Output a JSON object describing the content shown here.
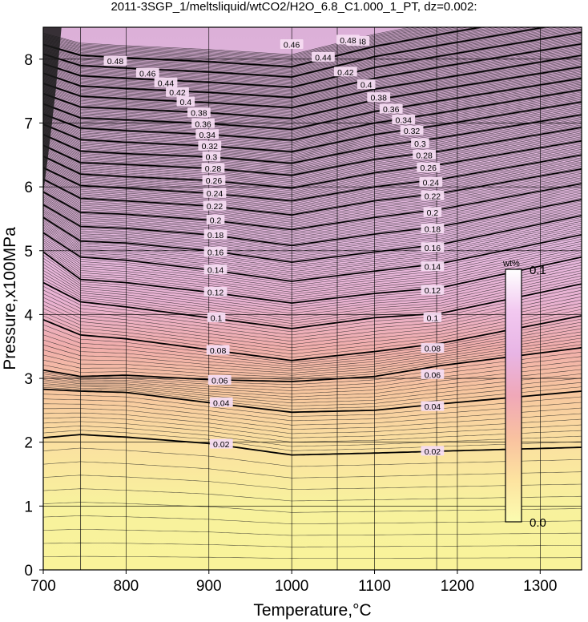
{
  "chart_data": {
    "type": "contour",
    "title": "2011-3SGP_1/meltsliquid/wtCO2/H2O_6.8_C1.000_1_PT, dz=0.002:",
    "xlabel": "Temperature,°C",
    "ylabel": "Pressure,x100MPa",
    "xlim": [
      700,
      1350
    ],
    "ylim": [
      0,
      8.5
    ],
    "xticks": [
      "700",
      "800",
      "900",
      "1000",
      "1100",
      "1200",
      "1300"
    ],
    "yticks": [
      "0",
      "1",
      "2",
      "3",
      "4",
      "5",
      "6",
      "7",
      "8"
    ],
    "contour_interval": 0.002,
    "bold_contour_interval": 0.02,
    "bold_contours": [
      {
        "level": 0.02,
        "x": [
          700,
          745,
          800,
          900,
          1000,
          1100,
          1180,
          1350
        ],
        "y": [
          2.07,
          2.12,
          2.08,
          1.98,
          1.8,
          1.83,
          1.86,
          1.92
        ]
      },
      {
        "level": 0.04,
        "x": [
          700,
          745,
          800,
          900,
          1000,
          1100,
          1180,
          1350
        ],
        "y": [
          2.83,
          2.8,
          2.78,
          2.62,
          2.47,
          2.5,
          2.6,
          2.8
        ]
      },
      {
        "level": 0.06,
        "x": [
          700,
          745,
          800,
          900,
          1000,
          1100,
          1180,
          1350
        ],
        "y": [
          3.13,
          3.03,
          3.05,
          2.98,
          2.95,
          3.03,
          3.2,
          3.48
        ]
      },
      {
        "level": 0.08,
        "x": [
          700,
          745,
          800,
          900,
          1000,
          1100,
          1180,
          1350
        ],
        "y": [
          3.92,
          3.68,
          3.62,
          3.45,
          3.28,
          3.42,
          3.55,
          3.98
        ]
      },
      {
        "level": 0.1,
        "x": [
          700,
          745,
          800,
          900,
          1000,
          1100,
          1180,
          1350
        ],
        "y": [
          4.5,
          4.2,
          4.12,
          3.95,
          3.78,
          3.95,
          4.02,
          4.48
        ]
      },
      {
        "level": 0.12,
        "x": [
          700,
          745,
          800,
          900,
          1000,
          1100,
          1180,
          1350
        ],
        "y": [
          4.98,
          4.55,
          4.5,
          4.35,
          4.18,
          4.33,
          4.42,
          4.9
        ]
      },
      {
        "level": 0.14,
        "x": [
          700,
          745,
          800,
          900,
          1000,
          1100,
          1180,
          1350
        ],
        "y": [
          5.28,
          4.9,
          4.85,
          4.7,
          4.52,
          4.68,
          4.8,
          5.25
        ]
      },
      {
        "level": 0.16,
        "x": [
          700,
          745,
          800,
          900,
          1000,
          1100,
          1180,
          1350
        ],
        "y": [
          5.52,
          5.15,
          5.12,
          5.0,
          4.82,
          4.98,
          5.1,
          5.55
        ]
      },
      {
        "level": 0.18,
        "x": [
          700,
          745,
          800,
          900,
          1000,
          1100,
          1180,
          1350
        ],
        "y": [
          5.72,
          5.38,
          5.35,
          5.25,
          5.08,
          5.26,
          5.38,
          5.8
        ]
      },
      {
        "level": 0.2,
        "x": [
          700,
          745,
          800,
          900,
          1000,
          1100,
          1180,
          1350
        ],
        "y": [
          5.92,
          5.6,
          5.57,
          5.48,
          5.33,
          5.52,
          5.65,
          6.05
        ]
      },
      {
        "level": 0.22,
        "x": [
          700,
          745,
          800,
          900,
          1000,
          1100,
          1180,
          1350
        ],
        "y": [
          6.12,
          5.82,
          5.78,
          5.7,
          5.56,
          5.78,
          5.9,
          6.28
        ]
      },
      {
        "level": 0.24,
        "x": [
          700,
          745,
          800,
          900,
          1000,
          1100,
          1180,
          1350
        ],
        "y": [
          6.3,
          6.02,
          5.98,
          5.9,
          5.78,
          6.0,
          6.12,
          6.5
        ]
      },
      {
        "level": 0.26,
        "x": [
          700,
          745,
          800,
          900,
          1000,
          1100,
          1180,
          1350
        ],
        "y": [
          6.48,
          6.2,
          6.16,
          6.1,
          5.98,
          6.22,
          6.35,
          6.72
        ]
      },
      {
        "level": 0.28,
        "x": [
          700,
          745,
          800,
          900,
          1000,
          1100,
          1180,
          1350
        ],
        "y": [
          6.65,
          6.38,
          6.35,
          6.29,
          6.18,
          6.43,
          6.56,
          6.93
        ]
      },
      {
        "level": 0.3,
        "x": [
          700,
          745,
          800,
          900,
          1000,
          1100,
          1180,
          1350
        ],
        "y": [
          6.82,
          6.56,
          6.52,
          6.47,
          6.37,
          6.63,
          6.77,
          7.13
        ]
      },
      {
        "level": 0.32,
        "x": [
          700,
          745,
          800,
          900,
          1000,
          1100,
          1180,
          1350
        ],
        "y": [
          6.98,
          6.74,
          6.7,
          6.64,
          6.55,
          6.82,
          6.97,
          7.33
        ]
      },
      {
        "level": 0.34,
        "x": [
          700,
          745,
          800,
          900,
          1000,
          1100,
          1180,
          1350
        ],
        "y": [
          7.14,
          6.92,
          6.88,
          6.82,
          6.73,
          7.0,
          7.16,
          7.52
        ]
      },
      {
        "level": 0.36,
        "x": [
          700,
          745,
          800,
          900,
          1000,
          1100,
          1180,
          1350
        ],
        "y": [
          7.3,
          7.08,
          7.05,
          6.99,
          6.9,
          7.18,
          7.35,
          7.7
        ]
      },
      {
        "level": 0.38,
        "x": [
          700,
          745,
          800,
          900,
          1000,
          1100,
          1180,
          1350
        ],
        "y": [
          7.46,
          7.25,
          7.22,
          7.16,
          7.07,
          7.36,
          7.53,
          7.88
        ]
      },
      {
        "level": 0.4,
        "x": [
          700,
          745,
          800,
          900,
          1000,
          1100,
          1180,
          1350
        ],
        "y": [
          7.62,
          7.42,
          7.38,
          7.32,
          7.24,
          7.53,
          7.7,
          8.06
        ]
      },
      {
        "level": 0.42,
        "x": [
          700,
          745,
          800,
          900,
          1000,
          1100,
          1180,
          1350
        ],
        "y": [
          7.78,
          7.58,
          7.54,
          7.48,
          7.4,
          7.7,
          7.88,
          8.24
        ]
      },
      {
        "level": 0.44,
        "x": [
          700,
          745,
          800,
          900,
          1000,
          1100,
          1180,
          1350
        ],
        "y": [
          7.93,
          7.74,
          7.7,
          7.64,
          7.56,
          7.87,
          8.05,
          8.42
        ]
      },
      {
        "level": 0.46,
        "x": [
          700,
          745,
          800,
          900,
          1000,
          1100,
          1180,
          1350
        ],
        "y": [
          8.08,
          7.9,
          7.86,
          7.8,
          7.72,
          8.04,
          8.22,
          8.6
        ]
      },
      {
        "level": 0.48,
        "x": [
          700,
          745,
          800,
          900,
          1000,
          1100,
          1180,
          1350
        ],
        "y": [
          8.23,
          8.06,
          8.02,
          7.96,
          7.88,
          8.2,
          8.39,
          8.78
        ]
      }
    ],
    "contour_labels": [
      {
        "text": "0.02",
        "x": 915,
        "y": 1.97
      },
      {
        "text": "0.02",
        "x": 1170,
        "y": 1.86
      },
      {
        "text": "0.04",
        "x": 915,
        "y": 2.62
      },
      {
        "text": "0.04",
        "x": 1170,
        "y": 2.56
      },
      {
        "text": "0.06",
        "x": 913,
        "y": 2.97
      },
      {
        "text": "0.06",
        "x": 1170,
        "y": 3.06
      },
      {
        "text": "0.08",
        "x": 911,
        "y": 3.44
      },
      {
        "text": "0.08",
        "x": 1170,
        "y": 3.47
      },
      {
        "text": "0.1",
        "x": 909,
        "y": 3.95
      },
      {
        "text": "0.1",
        "x": 1170,
        "y": 3.95
      },
      {
        "text": "0.12",
        "x": 908,
        "y": 4.35
      },
      {
        "text": "0.12",
        "x": 1170,
        "y": 4.38
      },
      {
        "text": "0.14",
        "x": 908,
        "y": 4.7
      },
      {
        "text": "0.14",
        "x": 1170,
        "y": 4.75
      },
      {
        "text": "0.16",
        "x": 908,
        "y": 4.98
      },
      {
        "text": "0.16",
        "x": 1170,
        "y": 5.05
      },
      {
        "text": "0.18",
        "x": 908,
        "y": 5.25
      },
      {
        "text": "0.18",
        "x": 1170,
        "y": 5.34
      },
      {
        "text": "0.2",
        "x": 908,
        "y": 5.48
      },
      {
        "text": "0.2",
        "x": 1170,
        "y": 5.6
      },
      {
        "text": "0.22",
        "x": 907,
        "y": 5.7
      },
      {
        "text": "0.22",
        "x": 1170,
        "y": 5.86
      },
      {
        "text": "0.24",
        "x": 907,
        "y": 5.9
      },
      {
        "text": "0.24",
        "x": 1168,
        "y": 6.07
      },
      {
        "text": "0.26",
        "x": 906,
        "y": 6.1
      },
      {
        "text": "0.26",
        "x": 1165,
        "y": 6.3
      },
      {
        "text": "0.28",
        "x": 905,
        "y": 6.29
      },
      {
        "text": "0.28",
        "x": 1160,
        "y": 6.5
      },
      {
        "text": "0.3",
        "x": 903,
        "y": 6.47
      },
      {
        "text": "0.3",
        "x": 1155,
        "y": 6.68
      },
      {
        "text": "0.32",
        "x": 901,
        "y": 6.64
      },
      {
        "text": "0.32",
        "x": 1145,
        "y": 6.88
      },
      {
        "text": "0.34",
        "x": 898,
        "y": 6.82
      },
      {
        "text": "0.34",
        "x": 1135,
        "y": 7.05
      },
      {
        "text": "0.36",
        "x": 893,
        "y": 6.99
      },
      {
        "text": "0.36",
        "x": 1120,
        "y": 7.22
      },
      {
        "text": "0.38",
        "x": 888,
        "y": 7.16
      },
      {
        "text": "0.38",
        "x": 1105,
        "y": 7.4
      },
      {
        "text": "0.4",
        "x": 872,
        "y": 7.33
      },
      {
        "text": "0.4",
        "x": 1090,
        "y": 7.6
      },
      {
        "text": "0.42",
        "x": 862,
        "y": 7.48
      },
      {
        "text": "0.42",
        "x": 1065,
        "y": 7.8
      },
      {
        "text": "0.44",
        "x": 848,
        "y": 7.63
      },
      {
        "text": "0.44",
        "x": 1038,
        "y": 8.03
      },
      {
        "text": "0.46",
        "x": 826,
        "y": 7.78
      },
      {
        "text": "0.46",
        "x": 1000,
        "y": 8.23
      },
      {
        "text": "0.48",
        "x": 787,
        "y": 7.97
      },
      {
        "text": "0.48",
        "x": 1080,
        "y": 8.28
      },
      {
        "text": "0.48",
        "x": 1068,
        "y": 8.3
      }
    ],
    "colorbar": {
      "min_label": "0.0",
      "max_label": "0.1",
      "unit": "wt%",
      "colors": [
        "#fbfcb0",
        "#fde3a0",
        "#f9c1a0",
        "#f0a8b8",
        "#e8b5e5",
        "#f2c8f0",
        "#ffffff"
      ]
    },
    "background_gradient": [
      {
        "p": 0,
        "color": "#f9f39a"
      },
      {
        "p": 1.0,
        "color": "#f8f29d"
      },
      {
        "p": 2.0,
        "color": "#fbe0a0"
      },
      {
        "p": 2.8,
        "color": "#f7c69f"
      },
      {
        "p": 3.5,
        "color": "#f1aeac"
      },
      {
        "p": 4.2,
        "color": "#eab2d2"
      },
      {
        "p": 5.0,
        "color": "#e7b9e0"
      },
      {
        "p": 6.5,
        "color": "#e3b8df"
      },
      {
        "p": 8.5,
        "color": "#dcb0d8"
      }
    ],
    "grid": true,
    "vertical_breaks": [
      745,
      1055,
      1175
    ]
  }
}
